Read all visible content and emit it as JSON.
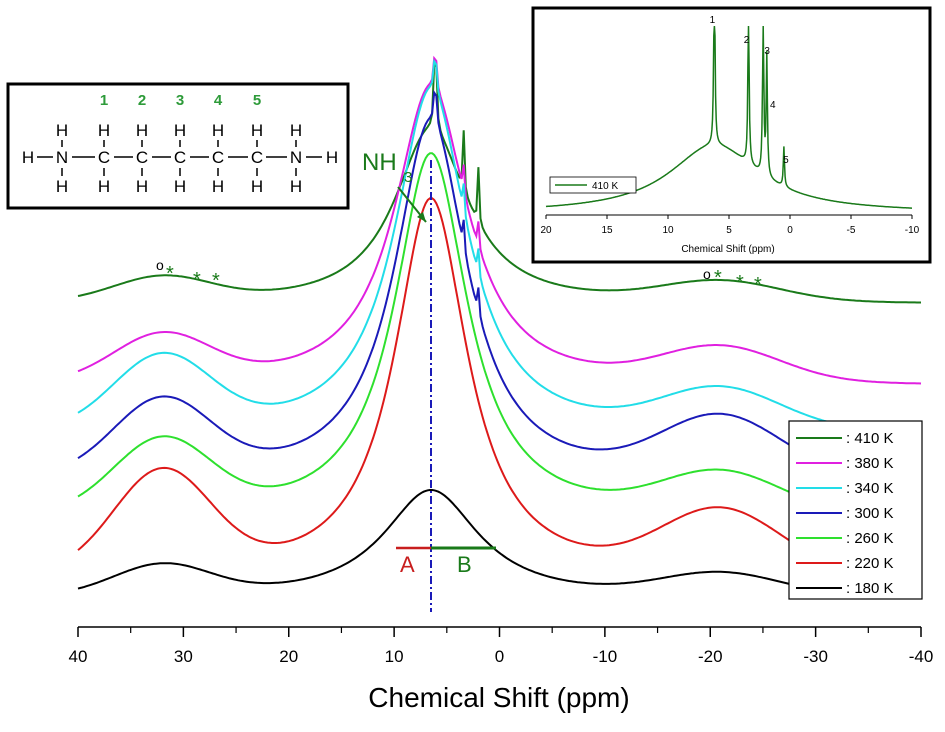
{
  "chart_data": {
    "type": "line",
    "title": "",
    "xlabel": "Chemical Shift (ppm)",
    "ylabel": "",
    "xlim": [
      40,
      -40
    ],
    "x_ticks": [
      "40",
      "30",
      "20",
      "10",
      "0",
      "-10",
      "-20",
      "-30",
      "-40"
    ],
    "series": [
      {
        "name": ": 410 K",
        "color": "#1a7a1a"
      },
      {
        "name": ": 380 K",
        "color": "#e020e0"
      },
      {
        "name": ": 340 K",
        "color": "#22dde8"
      },
      {
        "name": ": 300 K",
        "color": "#1a1ab8"
      },
      {
        "name": ": 260 K",
        "color": "#2ee02e"
      },
      {
        "name": ": 220 K",
        "color": "#dd1a1a"
      },
      {
        "name": ": 180 K",
        "color": "#000000"
      }
    ],
    "annotations": {
      "nh3_main": "NH",
      "nh3_sub": "3",
      "region_a": "A",
      "region_b": "B",
      "reference_line_ppm": 6.5,
      "sideband_circle": "o",
      "sideband_star": "*"
    },
    "inset": {
      "xlabel": "Chemical Shift (ppm)",
      "xlim": [
        20,
        -10
      ],
      "x_ticks": [
        "20",
        "15",
        "10",
        "5",
        "0",
        "-5",
        "-10"
      ],
      "legend": "410 K",
      "peak_labels": [
        "1",
        "2",
        "3",
        "4",
        "5"
      ],
      "peaks_ppm": [
        6.2,
        3.4,
        2.2,
        1.9,
        0.5
      ]
    },
    "molecule": {
      "position_numbers": [
        "1",
        "2",
        "3",
        "4",
        "5"
      ],
      "atom_h": "H",
      "atom_n": "N",
      "atom_c": "C"
    }
  }
}
